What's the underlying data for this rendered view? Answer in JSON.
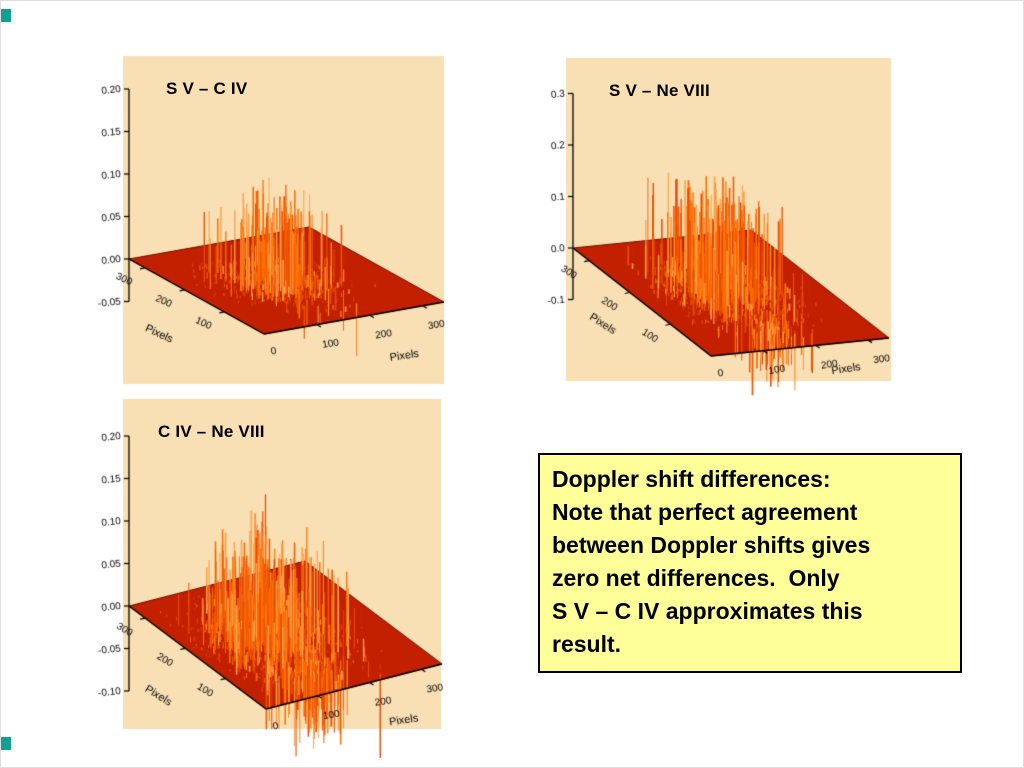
{
  "slide": {
    "background": "#ffffff"
  },
  "decoration": {
    "color": "#12a093"
  },
  "note": {
    "bg": "#ffff99",
    "border": "#000000",
    "lines": [
      "Doppler shift differences:",
      "Note that perfect agreement",
      "between Doppler shifts gives",
      "zero net differences.  Only",
      "S V – C IV approximates this",
      "result."
    ]
  },
  "chart_data": [
    {
      "type": "surface",
      "title": "S V – C IV",
      "xlabel": "Pixels",
      "ylabel": "Pixels",
      "origin_tick": "0",
      "x_ticks": [
        "100",
        "200",
        "300"
      ],
      "y_ticks": [
        "100",
        "200",
        "300"
      ],
      "z_ticks": [
        "0.20",
        "0.15",
        "0.10",
        "0.05",
        "0.00",
        "-0.05"
      ],
      "xlim": [
        0,
        340
      ],
      "ylim": [
        0,
        340
      ],
      "zlim": [
        -0.05,
        0.2
      ],
      "grid": false,
      "panel_bg": "#f8dfb4",
      "plane_color": "#c32000",
      "spike_palette": [
        "#ff8c26",
        "#ff6f00",
        "#f25600",
        "#ffa149",
        "#e84a00"
      ],
      "description": "Flat zero-difference plane with sparse noise spikes near centre; one dominant spike ~0.115; few shallow negative spikes. Closest to zero net difference.",
      "spikes": {
        "seed": 7,
        "count": 300,
        "max_pos": 0.11,
        "cx": 0.45,
        "cy": 0.5,
        "spread": 0.16,
        "neg_count": 25,
        "max_neg": 0.05,
        "ncx": 0.45,
        "ncy": 0.3,
        "nspread": 0.2,
        "texture": 520,
        "features": [
          {
            "u": 0.33,
            "v": 0.52,
            "amp": 0.115
          },
          {
            "u": 0.52,
            "v": 0.42,
            "amp": 0.055
          }
        ]
      }
    },
    {
      "type": "surface",
      "title": "S V – Ne VIII",
      "xlabel": "Pixels",
      "ylabel": "Pixels",
      "origin_tick": "0",
      "x_ticks": [
        "100",
        "200",
        "300"
      ],
      "y_ticks": [
        "100",
        "200",
        "300"
      ],
      "z_ticks": [
        "0.3",
        "0.2",
        "0.1",
        "0.0",
        "-0.1"
      ],
      "xlim": [
        0,
        340
      ],
      "ylim": [
        0,
        340
      ],
      "zlim": [
        -0.1,
        0.3
      ],
      "grid": false,
      "panel_bg": "#f8dfb4",
      "plane_color": "#c32000",
      "spike_palette": [
        "#ff8c26",
        "#ff6f00",
        "#f25600",
        "#ffa149",
        "#e84a00"
      ],
      "description": "Many tall positive spikes up to ~0.22 over the centre of the plane plus a tight cluster of deep negative spikes (~-0.12) near the front edge.",
      "spikes": {
        "seed": 13,
        "count": 520,
        "max_pos": 0.2,
        "cx": 0.45,
        "cy": 0.5,
        "spread": 0.18,
        "neg_count": 90,
        "max_neg": 0.125,
        "ncx": 0.5,
        "ncy": 0.22,
        "nspread": 0.09,
        "texture": 650,
        "features": [
          {
            "u": 0.4,
            "v": 0.55,
            "amp": 0.22
          },
          {
            "u": 0.48,
            "v": 0.45,
            "amp": 0.185
          },
          {
            "u": 0.35,
            "v": 0.6,
            "amp": 0.165
          },
          {
            "u": 0.6,
            "v": 0.5,
            "amp": 0.15
          }
        ]
      }
    },
    {
      "type": "surface",
      "title": "C IV – Ne VIII",
      "xlabel": "Pixels",
      "ylabel": "Pixels",
      "origin_tick": "0",
      "x_ticks": [
        "100",
        "200",
        "300"
      ],
      "y_ticks": [
        "100",
        "200",
        "300"
      ],
      "z_ticks": [
        "0.20",
        "0.15",
        "0.10",
        "0.05",
        "0.00",
        "-0.05",
        "-0.10"
      ],
      "xlim": [
        0,
        340
      ],
      "ylim": [
        0,
        340
      ],
      "zlim": [
        -0.1,
        0.2
      ],
      "grid": false,
      "panel_bg": "#f8dfb4",
      "plane_color": "#c32000",
      "spike_palette": [
        "#ff8c26",
        "#ff6f00",
        "#f25600",
        "#ffa149",
        "#e84a00"
      ],
      "description": "Dense positive spikes up to ~0.115 across the centre-left of the plane and many deep negative spikes (down to ~-0.10) hanging below the front edge.",
      "spikes": {
        "seed": 21,
        "count": 600,
        "max_pos": 0.115,
        "cx": 0.4,
        "cy": 0.5,
        "spread": 0.2,
        "neg_count": 150,
        "max_neg": 0.1,
        "ncx": 0.45,
        "ncy": 0.28,
        "nspread": 0.14,
        "texture": 700,
        "features": [
          {
            "u": 0.18,
            "v": 0.6,
            "amp": 0.115
          },
          {
            "u": 0.28,
            "v": 0.5,
            "amp": 0.105
          },
          {
            "u": 0.24,
            "v": 0.55,
            "amp": 0.1
          }
        ]
      }
    }
  ]
}
